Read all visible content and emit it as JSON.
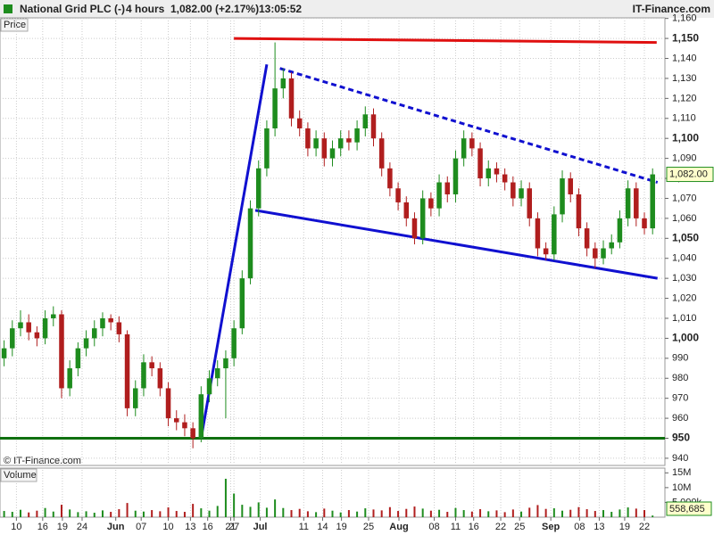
{
  "header": {
    "symbol": "National Grid PLC (-)",
    "interval": "4 hours",
    "quote": "1,082.00 (+2.17%)",
    "time": "13:05:52",
    "brand": "IT-Finance.com"
  },
  "chart_data": {
    "type": "candlestick",
    "price_label": "Price",
    "volume_label": "Volume",
    "copyright": "© IT-Finance.com",
    "x": [
      0,
      1,
      2,
      3,
      4,
      5,
      6,
      7,
      8,
      9,
      10,
      11,
      12,
      13,
      14,
      15,
      16,
      17,
      18,
      19,
      20,
      21,
      22,
      23,
      24,
      25,
      26,
      27,
      28,
      29,
      30,
      31,
      32,
      33,
      34,
      35,
      36,
      37,
      38,
      39,
      40,
      41,
      42,
      43,
      44,
      45,
      46,
      47,
      48,
      49,
      50,
      51,
      52,
      53,
      54,
      55,
      56,
      57,
      58,
      59,
      60,
      61,
      62,
      63,
      64,
      65,
      66,
      67,
      68,
      69,
      70,
      71,
      72,
      73,
      74,
      75,
      76,
      77,
      78,
      79
    ],
    "open": [
      990,
      995,
      1005,
      1008,
      1003,
      1000,
      1010,
      1012,
      975,
      985,
      995,
      1000,
      1005,
      1010,
      1008,
      1002,
      965,
      975,
      988,
      985,
      975,
      960,
      958,
      955,
      950,
      972,
      980,
      985,
      990,
      1005,
      1030,
      1065,
      1085,
      1105,
      1125,
      1130,
      1110,
      1105,
      1095,
      1100,
      1090,
      1095,
      1100,
      1098,
      1105,
      1112,
      1100,
      1085,
      1075,
      1068,
      1060,
      1050,
      1070,
      1065,
      1078,
      1072,
      1090,
      1100,
      1095,
      1080,
      1085,
      1082,
      1078,
      1070,
      1075,
      1060,
      1045,
      1042,
      1062,
      1080,
      1072,
      1055,
      1045,
      1040,
      1045,
      1048,
      1060,
      1075,
      1060,
      1055
    ],
    "high": [
      999,
      1009,
      1014,
      1012,
      1006,
      1014,
      1016,
      1014,
      989,
      998,
      1004,
      1009,
      1013,
      1012,
      1011,
      1004,
      979,
      992,
      991,
      988,
      978,
      964,
      962,
      958,
      976,
      984,
      989,
      994,
      1009,
      1034,
      1069,
      1089,
      1109,
      1148,
      1135,
      1133,
      1114,
      1108,
      1104,
      1103,
      1099,
      1104,
      1104,
      1109,
      1116,
      1115,
      1103,
      1088,
      1078,
      1071,
      1063,
      1074,
      1073,
      1082,
      1081,
      1094,
      1104,
      1103,
      1098,
      1089,
      1088,
      1085,
      1081,
      1079,
      1078,
      1063,
      1048,
      1066,
      1084,
      1083,
      1075,
      1058,
      1048,
      1049,
      1052,
      1064,
      1079,
      1078,
      1063,
      1085
    ],
    "low": [
      986,
      991,
      1001,
      999,
      996,
      997,
      1006,
      970,
      971,
      981,
      991,
      996,
      1001,
      1004,
      998,
      961,
      961,
      971,
      981,
      971,
      956,
      954,
      951,
      945,
      948,
      968,
      976,
      960,
      986,
      1002,
      1027,
      1061,
      1081,
      1101,
      1120,
      1106,
      1101,
      1091,
      1091,
      1086,
      1086,
      1091,
      1094,
      1094,
      1101,
      1096,
      1081,
      1071,
      1064,
      1056,
      1047,
      1047,
      1061,
      1061,
      1068,
      1068,
      1086,
      1091,
      1076,
      1076,
      1078,
      1074,
      1066,
      1066,
      1056,
      1041,
      1039,
      1039,
      1058,
      1068,
      1051,
      1041,
      1035,
      1037,
      1042,
      1045,
      1056,
      1056,
      1052,
      1052
    ],
    "close": [
      995,
      1005,
      1008,
      1003,
      1000,
      1010,
      1012,
      975,
      985,
      995,
      1000,
      1005,
      1010,
      1008,
      1002,
      965,
      975,
      988,
      985,
      975,
      960,
      958,
      955,
      950,
      972,
      980,
      985,
      990,
      1005,
      1030,
      1065,
      1085,
      1105,
      1125,
      1130,
      1110,
      1105,
      1095,
      1100,
      1090,
      1095,
      1100,
      1098,
      1105,
      1112,
      1100,
      1085,
      1075,
      1068,
      1060,
      1050,
      1070,
      1065,
      1078,
      1072,
      1090,
      1100,
      1095,
      1080,
      1085,
      1082,
      1078,
      1070,
      1075,
      1060,
      1045,
      1042,
      1062,
      1080,
      1072,
      1055,
      1045,
      1040,
      1045,
      1048,
      1060,
      1075,
      1060,
      1055,
      1082
    ],
    "volume": [
      2.1,
      1.8,
      2.5,
      1.6,
      2.2,
      3.1,
      1.9,
      4.2,
      2.6,
      1.7,
      2.0,
      1.5,
      2.3,
      1.8,
      2.7,
      4.8,
      2.2,
      1.9,
      2.4,
      2.0,
      3.3,
      2.1,
      1.8,
      4.5,
      3.0,
      2.2,
      3.8,
      13,
      8,
      4.2,
      3.5,
      5,
      3.2,
      6,
      3.1,
      2.4,
      2.8,
      2.0,
      1.7,
      2.9,
      2.2,
      1.6,
      2.4,
      1.9,
      3.0,
      2.6,
      2.3,
      3.4,
      2.1,
      2.8,
      3.6,
      2.9,
      2.2,
      2.5,
      1.8,
      3.1,
      2.4,
      1.9,
      2.7,
      2.0,
      2.3,
      1.7,
      2.6,
      1.9,
      3.2,
      4.1,
      2.8,
      3.0,
      2.2,
      2.5,
      3.4,
      2.7,
      2.1,
      2.4,
      1.8,
      2.6,
      3.3,
      2.9,
      2.4,
      0.558685
    ],
    "last_price_label": "1,082.00",
    "last_volume_label": "558,685",
    "up_color": "#1e8c1e",
    "down_color": "#b01e1e",
    "xlim": [
      -0.5,
      80.5
    ],
    "ylim": [
      936.4,
      1160.3
    ],
    "vlim": [
      0,
      16
    ],
    "xticks": [
      {
        "value": 1.5,
        "label": "10"
      },
      {
        "value": 4.7,
        "label": "16"
      },
      {
        "value": 7.1,
        "label": "19"
      },
      {
        "value": 9.5,
        "label": "24"
      },
      {
        "value": 13.6,
        "label": "Jun"
      },
      {
        "value": 16.7,
        "label": "07"
      },
      {
        "value": 20,
        "label": "10"
      },
      {
        "value": 22.7,
        "label": "13"
      },
      {
        "value": 24.8,
        "label": "16"
      },
      {
        "value": 27.6,
        "label": "21"
      },
      {
        "value": 28.0,
        "label": "27"
      },
      {
        "value": 31.2,
        "label": "Jul"
      },
      {
        "value": 36.5,
        "label": "11"
      },
      {
        "value": 38.8,
        "label": "14"
      },
      {
        "value": 41.1,
        "label": "19"
      },
      {
        "value": 44.4,
        "label": "25"
      },
      {
        "value": 48.1,
        "label": "Aug"
      },
      {
        "value": 52.4,
        "label": "08"
      },
      {
        "value": 55,
        "label": "11"
      },
      {
        "value": 57.2,
        "label": "16"
      },
      {
        "value": 60.5,
        "label": "22"
      },
      {
        "value": 62.8,
        "label": "25"
      },
      {
        "value": 66.6,
        "label": "Sep"
      },
      {
        "value": 70.1,
        "label": "08"
      },
      {
        "value": 72.5,
        "label": "13"
      },
      {
        "value": 75.6,
        "label": "19"
      },
      {
        "value": 78,
        "label": "22"
      }
    ],
    "yticks": [
      940,
      950,
      960,
      970,
      980,
      990,
      {
        "value": 1000,
        "label": "1,000"
      },
      {
        "value": 1010,
        "label": "1,010"
      },
      {
        "value": 1020,
        "label": "1,020"
      },
      {
        "value": 1030,
        "label": "1,030"
      },
      {
        "value": 1040,
        "label": "1,040"
      },
      {
        "value": 1050,
        "label": "1,050"
      },
      {
        "value": 1060,
        "label": "1,060"
      },
      {
        "value": 1070,
        "label": "1,070"
      },
      {
        "value": 1080,
        "label": "1,080"
      },
      {
        "value": 1090,
        "label": "1,090"
      },
      {
        "value": 1100,
        "label": "1,100"
      },
      {
        "value": 1110,
        "label": "1,110"
      },
      {
        "value": 1120,
        "label": "1,120"
      },
      {
        "value": 1130,
        "label": "1,130"
      },
      {
        "value": 1140,
        "label": "1,140"
      },
      {
        "value": 1150,
        "label": "1,150"
      },
      {
        "value": 1160,
        "label": "1,160"
      }
    ],
    "vticks": [
      {
        "value": 5,
        "label": "5,000k"
      },
      {
        "value": 10,
        "label": "10M"
      },
      {
        "value": 15,
        "label": "15M"
      }
    ],
    "grid": true,
    "lines": [
      {
        "color": "#e01010",
        "dash": false,
        "from": [
          28,
          1150
        ],
        "to": [
          79.5,
          1148
        ]
      },
      {
        "color": "#107010",
        "dash": false,
        "from": [
          -0.5,
          950
        ],
        "to": [
          80.5,
          950
        ]
      },
      {
        "color": "#1010d0",
        "dash": false,
        "from": [
          24,
          950
        ],
        "to": [
          32,
          1137
        ]
      },
      {
        "color": "#1010d0",
        "dash": false,
        "from": [
          30.6,
          1064
        ],
        "to": [
          79.6,
          1030
        ]
      },
      {
        "color": "#1010d0",
        "dash": true,
        "from": [
          33.6,
          1135
        ],
        "to": [
          79.6,
          1078
        ]
      }
    ]
  }
}
